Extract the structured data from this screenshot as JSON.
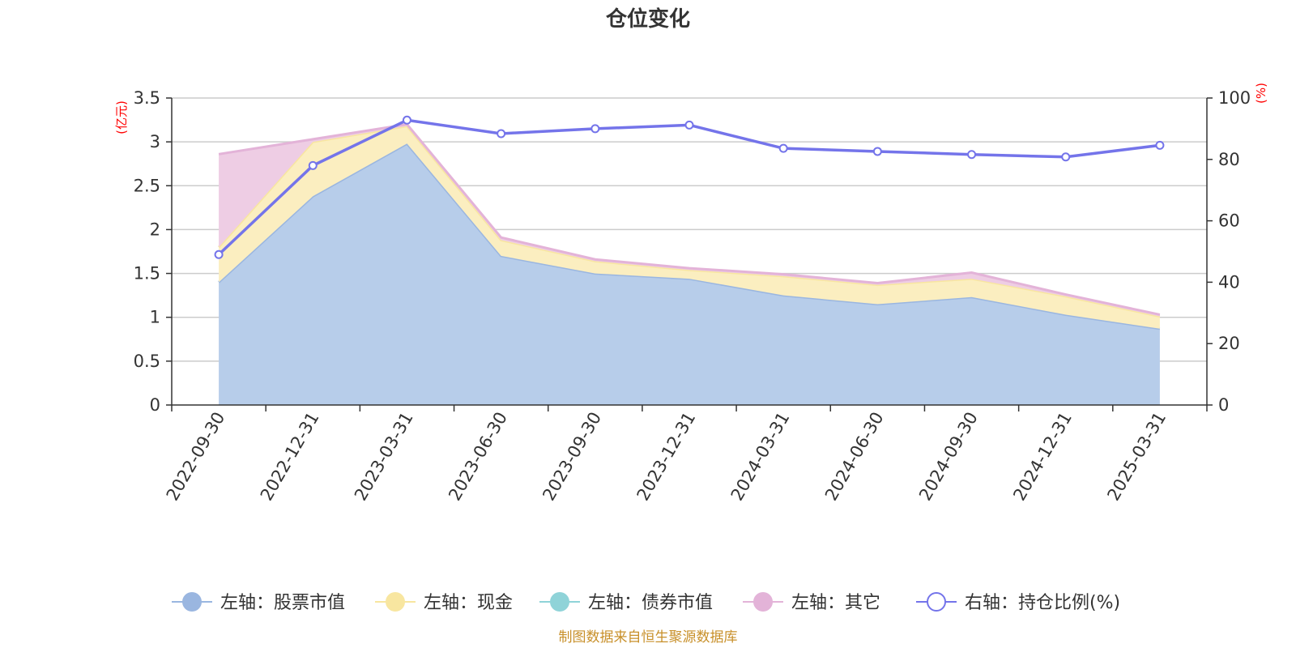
{
  "chart_data": {
    "type": "area",
    "title": "仓位变化",
    "x": [
      "2022-09-30",
      "2022-12-31",
      "2023-03-31",
      "2023-06-30",
      "2023-09-30",
      "2023-12-31",
      "2024-03-31",
      "2024-06-30",
      "2024-09-30",
      "2024-12-31",
      "2025-03-31"
    ],
    "left_axis": {
      "unit": "(亿元)",
      "ylim": [
        0,
        3.5
      ],
      "ticks": [
        "0",
        "0.5",
        "1",
        "1.5",
        "2",
        "2.5",
        "3",
        "3.5"
      ]
    },
    "right_axis": {
      "unit": "(%)",
      "ylim": [
        0,
        100
      ],
      "ticks": [
        "0",
        "20",
        "40",
        "60",
        "80",
        "100"
      ]
    },
    "grid": true,
    "legend_position": "bottom",
    "series": [
      {
        "name": "左轴：股票市值",
        "axis": "left",
        "stack": true,
        "color": "#9ab6e0",
        "fill": "#b7cdea",
        "values": [
          1.4,
          2.38,
          2.98,
          1.7,
          1.5,
          1.44,
          1.25,
          1.15,
          1.23,
          1.03,
          0.87
        ]
      },
      {
        "name": "左轴：现金",
        "axis": "left",
        "stack": true,
        "color": "#f8e6a0",
        "fill": "#fbeec0",
        "values": [
          0.4,
          0.62,
          0.2,
          0.18,
          0.14,
          0.1,
          0.22,
          0.22,
          0.21,
          0.21,
          0.14
        ]
      },
      {
        "name": "左轴：债券市值",
        "axis": "left",
        "stack": true,
        "color": "#8fd3d8",
        "fill": "#b5e3e6",
        "values": [
          0,
          0,
          0,
          0,
          0,
          0,
          0,
          0,
          0,
          0,
          0
        ]
      },
      {
        "name": "左轴：其它",
        "axis": "left",
        "stack": true,
        "color": "#e3b3d8",
        "fill": "#eecde4",
        "values": [
          1.06,
          0.03,
          0.02,
          0.03,
          0.02,
          0.02,
          0.02,
          0.02,
          0.07,
          0.02,
          0.02
        ]
      },
      {
        "name": "右轴：持仓比例(%)",
        "axis": "right",
        "type": "line",
        "color": "#7474ea",
        "values": [
          49.0,
          78.0,
          92.8,
          88.4,
          90.0,
          91.2,
          83.6,
          82.6,
          81.6,
          80.8,
          84.6
        ]
      }
    ]
  },
  "source_text": "制图数据来自恒生聚源数据库"
}
